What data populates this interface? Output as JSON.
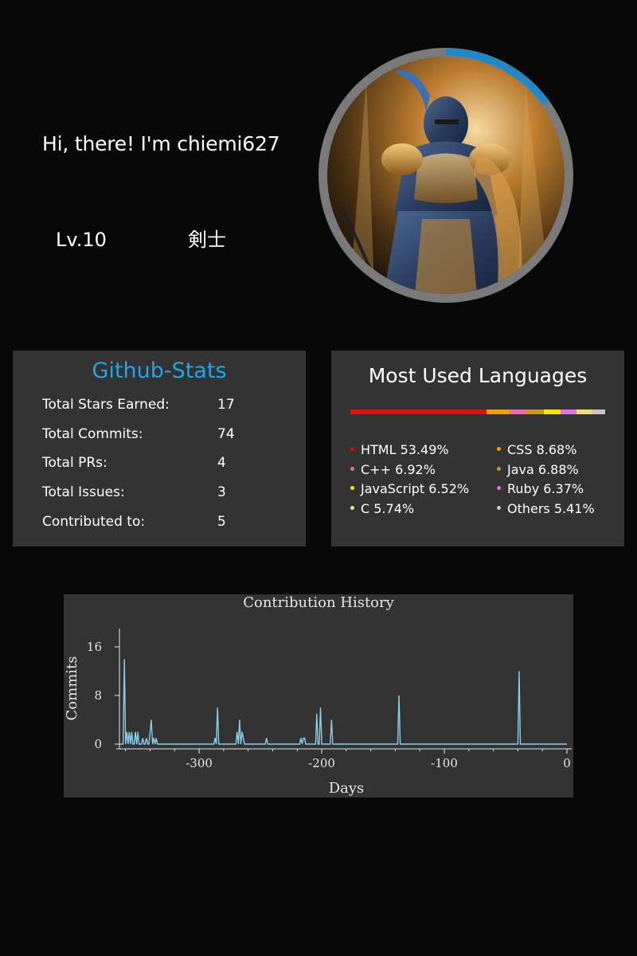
{
  "profile": {
    "greeting": "Hi, there! I'm chiemi627",
    "level": "Lv.10",
    "job": "剣士",
    "avatar_icon": "armored-knight-illustration",
    "exp_progress": 0.15,
    "ring_color": "#7a7a7a",
    "progress_color": "#1e88c8"
  },
  "github_stats": {
    "title": "Github-Stats",
    "title_color": "#1ba7e8",
    "rows": [
      {
        "label": "Total Stars Earned:",
        "value": "17"
      },
      {
        "label": "Total Commits:",
        "value": "74"
      },
      {
        "label": "Total PRs:",
        "value": "4"
      },
      {
        "label": "Total Issues:",
        "value": "3"
      },
      {
        "label": "Contributed to:",
        "value": "5"
      }
    ]
  },
  "languages": {
    "title": "Most Used Languages",
    "items": [
      {
        "name": "HTML",
        "percent": 53.49,
        "label": "HTML 53.49%",
        "color": "#e01010"
      },
      {
        "name": "CSS",
        "percent": 8.68,
        "label": "CSS 8.68%",
        "color": "#f0a000"
      },
      {
        "name": "C++",
        "percent": 6.92,
        "label": "C++ 6.92%",
        "color": "#f06aa8"
      },
      {
        "name": "Java",
        "percent": 6.88,
        "label": "Java 6.88%",
        "color": "#c89a1a"
      },
      {
        "name": "JavaScript",
        "percent": 6.52,
        "label": "JavaScript 6.52%",
        "color": "#f4e800"
      },
      {
        "name": "Ruby",
        "percent": 6.37,
        "label": "Ruby 6.37%",
        "color": "#e070e0"
      },
      {
        "name": "C",
        "percent": 5.74,
        "label": "C 5.74%",
        "color": "#f0dc80"
      },
      {
        "name": "Others",
        "percent": 5.41,
        "label": "Others 5.41%",
        "color": "#c8c8c8"
      }
    ]
  },
  "chart_data": {
    "type": "line",
    "title": "Contribution History",
    "xlabel": "Days",
    "ylabel": "Commits",
    "xlim": [
      -365,
      0
    ],
    "ylim": [
      0,
      19
    ],
    "xticks": [
      -300,
      -200,
      -100,
      0
    ],
    "yticks": [
      0,
      8,
      16
    ],
    "grid": false,
    "line_color": "#87ceeb",
    "series": [
      {
        "x": [
          -361,
          -359,
          -357,
          -355,
          -352,
          -350,
          -346,
          -343,
          -340,
          -339,
          -337,
          -335,
          -287,
          -285,
          -269,
          -267,
          -265,
          -264,
          -245,
          -217,
          -215,
          -214,
          -204,
          -201,
          -192,
          -137,
          -39
        ],
        "values": [
          14,
          2,
          2,
          2,
          2,
          2,
          1,
          1,
          2,
          4,
          1,
          1,
          1,
          6,
          2,
          4,
          2,
          1,
          1,
          1,
          1,
          1,
          5,
          6,
          4,
          8,
          12
        ]
      }
    ]
  }
}
